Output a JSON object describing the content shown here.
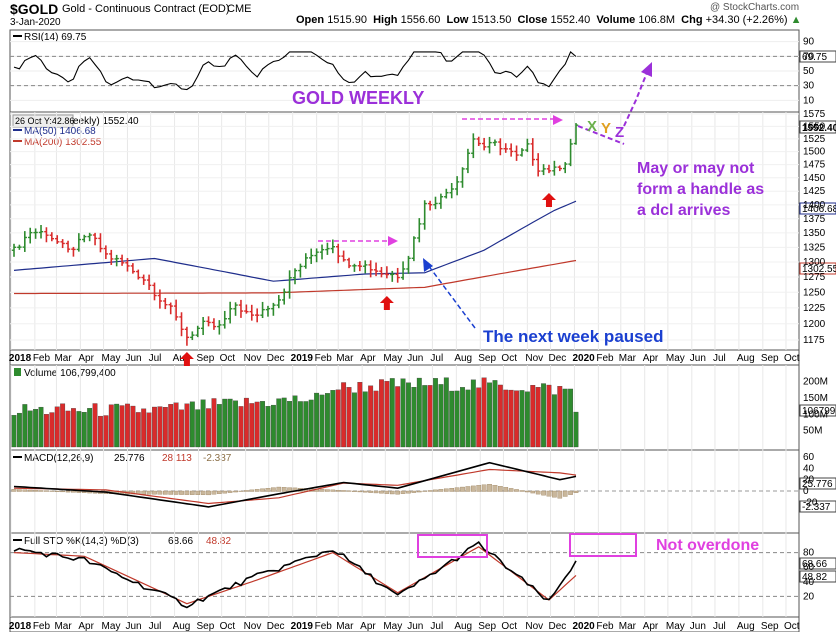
{
  "header": {
    "symbol": "$GOLD",
    "name": "Gold - Continuous Contract (EOD)",
    "exchange": "CME",
    "date": "3-Jan-2020",
    "watermark": "@ StockCharts.com",
    "open_label": "Open",
    "open": "1515.90",
    "high_label": "High",
    "high": "1556.60",
    "low_label": "Low",
    "low": "1513.50",
    "close_label": "Close",
    "close": "1552.40",
    "volume_label": "Volume",
    "volume": "106.8M",
    "chg_label": "Chg",
    "chg": "+34.30 (+2.26%)",
    "chg_icon": "up-triangle-icon"
  },
  "colors": {
    "up": "#2e8b2e",
    "down": "#d92b2b",
    "ma50": "#1f2e8c",
    "ma200": "#c0392b",
    "annotation_purple": "#9b30d9",
    "magenta": "#e040e0",
    "blue_text": "#1a3fd0"
  },
  "rsi_panel": {
    "legend": "RSI(14) 69.75",
    "ticks": [
      "90",
      "70",
      "50",
      "30",
      "10"
    ],
    "last_value": "69.75"
  },
  "price_panel": {
    "legend_prefix": "eekly) 1552.40",
    "date_tooltip": "26 Oct Y:42.86",
    "ma50_legend": "MA(50) 1406.68",
    "ma200_legend": "MA(200) 1302.55",
    "title_annotation": "GOLD WEEKLY",
    "ticks": [
      "1575",
      "1550",
      "1525",
      "1500",
      "1475",
      "1450",
      "1425",
      "1400",
      "1375",
      "1350",
      "1325",
      "1300",
      "1275",
      "1250",
      "1225",
      "1200",
      "1175"
    ],
    "last_price": "1552.40",
    "ma50_label": "1406.68",
    "ma200_label": "1302.55",
    "annotation_handle": [
      "May or may not",
      "form a handle as",
      "a dcl arrives"
    ],
    "annotation_paused": "The next week paused",
    "xyz": [
      "X",
      "Y",
      "Z"
    ]
  },
  "time_axis": {
    "labels": [
      "2018",
      "Feb",
      "Mar",
      "Apr",
      "May",
      "Jun",
      "Jul",
      "Aug",
      "Sep",
      "Oct",
      "Nov",
      "Dec",
      "2019",
      "Feb",
      "Mar",
      "Apr",
      "May",
      "Jun",
      "Jul",
      "Aug",
      "Sep",
      "Oct",
      "Nov",
      "Dec",
      "2020",
      "Feb",
      "Mar",
      "Apr",
      "May",
      "Jun",
      "Jul",
      "Aug",
      "Sep",
      "Oct"
    ],
    "bold": [
      "2018",
      "2019",
      "2020"
    ]
  },
  "volume_panel": {
    "legend": "Volume 106,799,400",
    "ticks": [
      "200M",
      "150M",
      "100M",
      "50M"
    ],
    "last_value": "106799"
  },
  "macd_panel": {
    "legend_name": "MACD(12,26,9)",
    "macd": "25.776",
    "signal": "28.113",
    "histogram": "-2.337",
    "ticks": [
      "60",
      "40",
      "20",
      "0",
      "-20"
    ],
    "macd_label": "25.776",
    "hist_label": "-2.337"
  },
  "sto_panel": {
    "legend_name": "Full STO %K(14,3) %D(3)",
    "k": "68.66",
    "d": "48.82",
    "ticks": [
      "80",
      "60",
      "40",
      "20"
    ],
    "k_label": "68.66",
    "d_label": "48.82",
    "annotation": "Not overdone"
  },
  "chart_data": {
    "type": "candlestick",
    "title": "GOLD WEEKLY",
    "start": "2018-01-05",
    "x_range": [
      "2018-01",
      "2020-10"
    ],
    "price_ylim": [
      1160,
      1580
    ],
    "y_scale": "log",
    "grid": false,
    "weekly_close_anchors": [
      {
        "date": "2018-01-05",
        "close": 1320
      },
      {
        "date": "2018-01-26",
        "close": 1352
      },
      {
        "date": "2018-02-16",
        "close": 1350
      },
      {
        "date": "2018-03-16",
        "close": 1318
      },
      {
        "date": "2018-04-13",
        "close": 1347
      },
      {
        "date": "2018-05-04",
        "close": 1312
      },
      {
        "date": "2018-05-25",
        "close": 1298
      },
      {
        "date": "2018-06-22",
        "close": 1272
      },
      {
        "date": "2018-07-13",
        "close": 1240
      },
      {
        "date": "2018-07-27",
        "close": 1222
      },
      {
        "date": "2018-08-17",
        "close": 1180
      },
      {
        "date": "2018-09-07",
        "close": 1198
      },
      {
        "date": "2018-09-28",
        "close": 1195
      },
      {
        "date": "2018-10-19",
        "close": 1230
      },
      {
        "date": "2018-11-09",
        "close": 1210
      },
      {
        "date": "2018-11-23",
        "close": 1222
      },
      {
        "date": "2018-12-14",
        "close": 1240
      },
      {
        "date": "2019-01-04",
        "close": 1285
      },
      {
        "date": "2019-02-01",
        "close": 1320
      },
      {
        "date": "2019-02-22",
        "close": 1330
      },
      {
        "date": "2019-03-08",
        "close": 1300
      },
      {
        "date": "2019-03-29",
        "close": 1298
      },
      {
        "date": "2019-04-26",
        "close": 1282
      },
      {
        "date": "2019-05-17",
        "close": 1278
      },
      {
        "date": "2019-05-31",
        "close": 1310
      },
      {
        "date": "2019-06-21",
        "close": 1400
      },
      {
        "date": "2019-07-12",
        "close": 1412
      },
      {
        "date": "2019-08-02",
        "close": 1445
      },
      {
        "date": "2019-08-23",
        "close": 1525
      },
      {
        "date": "2019-09-06",
        "close": 1510
      },
      {
        "date": "2019-09-20",
        "close": 1515
      },
      {
        "date": "2019-10-04",
        "close": 1505
      },
      {
        "date": "2019-10-18",
        "close": 1490
      },
      {
        "date": "2019-11-01",
        "close": 1510
      },
      {
        "date": "2019-11-15",
        "close": 1468
      },
      {
        "date": "2019-12-06",
        "close": 1465
      },
      {
        "date": "2019-12-20",
        "close": 1480
      },
      {
        "date": "2019-12-27",
        "close": 1515
      },
      {
        "date": "2020-01-03",
        "close": 1552.4
      }
    ],
    "last_bar": {
      "date": "2020-01-03",
      "open": 1515.9,
      "high": 1556.6,
      "low": 1513.5,
      "close": 1552.4,
      "volume": 106799400
    },
    "ma50_anchors": [
      {
        "date": "2018-01-05",
        "value": 1286
      },
      {
        "date": "2018-07-06",
        "value": 1306
      },
      {
        "date": "2018-12-07",
        "value": 1268
      },
      {
        "date": "2019-04-05",
        "value": 1280
      },
      {
        "date": "2019-06-21",
        "value": 1282
      },
      {
        "date": "2019-09-06",
        "value": 1320
      },
      {
        "date": "2019-12-06",
        "value": 1390
      },
      {
        "date": "2020-01-03",
        "value": 1406.68
      }
    ],
    "ma200_anchors": [
      {
        "date": "2018-01-05",
        "value": 1248
      },
      {
        "date": "2018-12-07",
        "value": 1249
      },
      {
        "date": "2019-06-21",
        "value": 1258
      },
      {
        "date": "2019-10-04",
        "value": 1282
      },
      {
        "date": "2020-01-03",
        "value": 1302.55
      }
    ],
    "macd_anchors": [
      {
        "date": "2018-01-05",
        "macd": 8,
        "signal": 5
      },
      {
        "date": "2018-05-04",
        "macd": -2,
        "signal": 2
      },
      {
        "date": "2018-09-14",
        "macd": -28,
        "signal": -22
      },
      {
        "date": "2018-12-14",
        "macd": -5,
        "signal": -12
      },
      {
        "date": "2019-03-08",
        "macd": 15,
        "signal": 14
      },
      {
        "date": "2019-05-17",
        "macd": 5,
        "signal": 10
      },
      {
        "date": "2019-09-13",
        "macd": 50,
        "signal": 38
      },
      {
        "date": "2019-12-13",
        "macd": 20,
        "signal": 32
      },
      {
        "date": "2020-01-03",
        "macd": 25.776,
        "signal": 28.113
      }
    ],
    "sto_anchors": [
      {
        "date": "2018-01-05",
        "k": 85,
        "d": 80
      },
      {
        "date": "2018-04-06",
        "k": 70,
        "d": 75
      },
      {
        "date": "2018-08-17",
        "k": 8,
        "d": 10
      },
      {
        "date": "2018-11-09",
        "k": 45,
        "d": 40
      },
      {
        "date": "2019-02-22",
        "k": 85,
        "d": 80
      },
      {
        "date": "2019-05-17",
        "k": 20,
        "d": 25
      },
      {
        "date": "2019-08-30",
        "k": 92,
        "d": 88
      },
      {
        "date": "2019-11-29",
        "k": 12,
        "d": 15
      },
      {
        "date": "2020-01-03",
        "k": 68.66,
        "d": 48.82
      }
    ],
    "annotation_arrows": [
      {
        "type": "red-up-arrow",
        "date": "2018-08-17"
      },
      {
        "type": "red-up-arrow",
        "date": "2019-05-03"
      },
      {
        "type": "red-up-arrow",
        "date": "2019-11-29"
      }
    ]
  }
}
